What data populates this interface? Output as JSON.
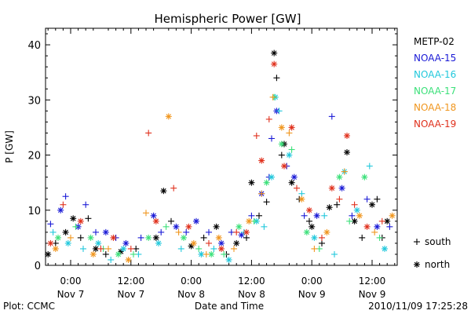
{
  "chart_data": {
    "type": "scatter",
    "title": "Hemispheric Power [GW]",
    "xlabel": "Date and Time",
    "ylabel": "P [GW]",
    "xlim": [
      -10,
      130
    ],
    "ylim": [
      0,
      43
    ],
    "yticks": [
      0,
      10,
      20,
      30,
      40
    ],
    "x_unit": "hours since 00:00 Nov 7",
    "xticks": [
      {
        "x": 0,
        "line1": "0:00",
        "line2": "Nov 7"
      },
      {
        "x": 24,
        "line1": "12:00",
        "line2": "Nov 7"
      },
      {
        "x": 48,
        "line1": "0:00",
        "line2": "Nov 8"
      },
      {
        "x": 72,
        "line1": "12:00",
        "line2": "Nov 8"
      },
      {
        "x": 96,
        "line1": "0:00",
        "line2": "Nov 9"
      },
      {
        "x": 120,
        "line1": "12:00",
        "line2": "Nov 9"
      }
    ],
    "grid": false,
    "legend_position": "right",
    "series": [
      {
        "name": "METP-02",
        "color": "#000000"
      },
      {
        "name": "NOAA-15",
        "color": "#1a1ad6"
      },
      {
        "name": "NOAA-16",
        "color": "#22c8dc"
      },
      {
        "name": "NOAA-17",
        "color": "#3ce07a"
      },
      {
        "name": "NOAA-18",
        "color": "#f0961e"
      },
      {
        "name": "NOAA-19",
        "color": "#e0301c"
      }
    ],
    "marker_legend": [
      {
        "symbol": "+",
        "label": "south"
      },
      {
        "symbol": "*",
        "label": "north"
      }
    ],
    "points": [
      {
        "s": 0,
        "x": -9,
        "y": 2,
        "m": "*"
      },
      {
        "s": 0,
        "x": -6,
        "y": 4,
        "m": "+"
      },
      {
        "s": 0,
        "x": -2,
        "y": 6,
        "m": "*"
      },
      {
        "s": 0,
        "x": 1,
        "y": 8.5,
        "m": "*"
      },
      {
        "s": 0,
        "x": 4,
        "y": 5,
        "m": "+"
      },
      {
        "s": 0,
        "x": 7,
        "y": 8.5,
        "m": "+"
      },
      {
        "s": 0,
        "x": 10,
        "y": 3,
        "m": "*"
      },
      {
        "s": 0,
        "x": 14,
        "y": 2,
        "m": "+"
      },
      {
        "s": 0,
        "x": 20,
        "y": 2.5,
        "m": "*"
      },
      {
        "s": 0,
        "x": 26,
        "y": 3,
        "m": "+"
      },
      {
        "s": 0,
        "x": 34,
        "y": 5,
        "m": "*"
      },
      {
        "s": 0,
        "x": 37,
        "y": 13.5,
        "m": "*"
      },
      {
        "s": 0,
        "x": 40,
        "y": 8,
        "m": "+"
      },
      {
        "s": 0,
        "x": 48,
        "y": 3.5,
        "m": "*"
      },
      {
        "s": 0,
        "x": 53,
        "y": 5,
        "m": "+"
      },
      {
        "s": 0,
        "x": 58,
        "y": 7,
        "m": "*"
      },
      {
        "s": 0,
        "x": 62,
        "y": 2,
        "m": "+"
      },
      {
        "s": 0,
        "x": 66,
        "y": 4,
        "m": "*"
      },
      {
        "s": 0,
        "x": 70,
        "y": 5,
        "m": "+"
      },
      {
        "s": 0,
        "x": 72,
        "y": 15,
        "m": "*"
      },
      {
        "s": 0,
        "x": 75,
        "y": 9,
        "m": "+"
      },
      {
        "s": 0,
        "x": 78,
        "y": 11.5,
        "m": "+"
      },
      {
        "s": 0,
        "x": 81,
        "y": 38.5,
        "m": "*"
      },
      {
        "s": 0,
        "x": 82,
        "y": 34,
        "m": "+"
      },
      {
        "s": 0,
        "x": 84,
        "y": 20,
        "m": "+"
      },
      {
        "s": 0,
        "x": 85,
        "y": 22,
        "m": "*"
      },
      {
        "s": 0,
        "x": 88,
        "y": 15,
        "m": "*"
      },
      {
        "s": 0,
        "x": 91,
        "y": 12,
        "m": "+"
      },
      {
        "s": 0,
        "x": 95,
        "y": 8,
        "m": "+"
      },
      {
        "s": 0,
        "x": 96,
        "y": 7,
        "m": "*"
      },
      {
        "s": 0,
        "x": 100,
        "y": 4,
        "m": "+"
      },
      {
        "s": 0,
        "x": 103,
        "y": 10.5,
        "m": "*"
      },
      {
        "s": 0,
        "x": 106,
        "y": 11,
        "m": "+"
      },
      {
        "s": 0,
        "x": 110,
        "y": 20.5,
        "m": "*"
      },
      {
        "s": 0,
        "x": 113,
        "y": 8,
        "m": "*"
      },
      {
        "s": 0,
        "x": 116,
        "y": 5,
        "m": "+"
      },
      {
        "s": 0,
        "x": 120,
        "y": 11,
        "m": "*"
      },
      {
        "s": 0,
        "x": 122,
        "y": 12,
        "m": "+"
      },
      {
        "s": 0,
        "x": 126,
        "y": 8,
        "m": "*"
      },
      {
        "s": 0,
        "x": 124,
        "y": 5,
        "m": "+"
      },
      {
        "s": 1,
        "x": -8,
        "y": 7.5,
        "m": "+"
      },
      {
        "s": 1,
        "x": -4,
        "y": 10,
        "m": "*"
      },
      {
        "s": 1,
        "x": -2,
        "y": 12.5,
        "m": "+"
      },
      {
        "s": 1,
        "x": 3,
        "y": 7,
        "m": "*"
      },
      {
        "s": 1,
        "x": 6,
        "y": 11,
        "m": "+"
      },
      {
        "s": 1,
        "x": 10,
        "y": 6,
        "m": "+"
      },
      {
        "s": 1,
        "x": 14,
        "y": 6,
        "m": "*"
      },
      {
        "s": 1,
        "x": 18,
        "y": 5,
        "m": "+"
      },
      {
        "s": 1,
        "x": 22,
        "y": 4,
        "m": "*"
      },
      {
        "s": 1,
        "x": 28,
        "y": 5,
        "m": "+"
      },
      {
        "s": 1,
        "x": 33,
        "y": 9,
        "m": "*"
      },
      {
        "s": 1,
        "x": 36,
        "y": 6,
        "m": "+"
      },
      {
        "s": 1,
        "x": 42,
        "y": 7,
        "m": "*"
      },
      {
        "s": 1,
        "x": 46,
        "y": 6,
        "m": "+"
      },
      {
        "s": 1,
        "x": 50,
        "y": 8,
        "m": "*"
      },
      {
        "s": 1,
        "x": 55,
        "y": 6,
        "m": "+"
      },
      {
        "s": 1,
        "x": 60,
        "y": 4,
        "m": "*"
      },
      {
        "s": 1,
        "x": 64,
        "y": 6,
        "m": "+"
      },
      {
        "s": 1,
        "x": 68,
        "y": 5.5,
        "m": "*"
      },
      {
        "s": 1,
        "x": 72,
        "y": 9,
        "m": "+"
      },
      {
        "s": 1,
        "x": 76,
        "y": 13,
        "m": "*"
      },
      {
        "s": 1,
        "x": 79,
        "y": 16,
        "m": "+"
      },
      {
        "s": 1,
        "x": 80,
        "y": 23,
        "m": "+"
      },
      {
        "s": 1,
        "x": 82,
        "y": 28,
        "m": "*"
      },
      {
        "s": 1,
        "x": 86,
        "y": 18,
        "m": "+"
      },
      {
        "s": 1,
        "x": 89,
        "y": 16,
        "m": "*"
      },
      {
        "s": 1,
        "x": 93,
        "y": 9,
        "m": "+"
      },
      {
        "s": 1,
        "x": 98,
        "y": 9,
        "m": "*"
      },
      {
        "s": 1,
        "x": 104,
        "y": 27,
        "m": "+"
      },
      {
        "s": 1,
        "x": 108,
        "y": 14,
        "m": "*"
      },
      {
        "s": 1,
        "x": 112,
        "y": 9,
        "m": "+"
      },
      {
        "s": 1,
        "x": 118,
        "y": 12,
        "m": "+"
      },
      {
        "s": 1,
        "x": 122,
        "y": 7,
        "m": "*"
      },
      {
        "s": 1,
        "x": 127,
        "y": 7,
        "m": "+"
      },
      {
        "s": 2,
        "x": -7,
        "y": 6,
        "m": "+"
      },
      {
        "s": 2,
        "x": -1,
        "y": 4,
        "m": "*"
      },
      {
        "s": 2,
        "x": 5,
        "y": 3,
        "m": "+"
      },
      {
        "s": 2,
        "x": 11,
        "y": 4,
        "m": "*"
      },
      {
        "s": 2,
        "x": 16,
        "y": 1,
        "m": "+"
      },
      {
        "s": 2,
        "x": 21,
        "y": 3,
        "m": "*"
      },
      {
        "s": 2,
        "x": 27,
        "y": 2,
        "m": "+"
      },
      {
        "s": 2,
        "x": 35,
        "y": 4,
        "m": "*"
      },
      {
        "s": 2,
        "x": 44,
        "y": 3,
        "m": "+"
      },
      {
        "s": 2,
        "x": 52,
        "y": 2,
        "m": "*"
      },
      {
        "s": 2,
        "x": 57,
        "y": 3,
        "m": "+"
      },
      {
        "s": 2,
        "x": 63,
        "y": 1,
        "m": "*"
      },
      {
        "s": 2,
        "x": 69,
        "y": 6,
        "m": "+"
      },
      {
        "s": 2,
        "x": 74,
        "y": 8,
        "m": "*"
      },
      {
        "s": 2,
        "x": 77,
        "y": 7,
        "m": "+"
      },
      {
        "s": 2,
        "x": 80,
        "y": 16,
        "m": "*"
      },
      {
        "s": 2,
        "x": 81.5,
        "y": 30.5,
        "m": "*"
      },
      {
        "s": 2,
        "x": 83,
        "y": 28,
        "m": "+"
      },
      {
        "s": 2,
        "x": 87,
        "y": 20,
        "m": "*"
      },
      {
        "s": 2,
        "x": 92,
        "y": 13,
        "m": "+"
      },
      {
        "s": 2,
        "x": 97,
        "y": 5,
        "m": "*"
      },
      {
        "s": 2,
        "x": 101,
        "y": 9,
        "m": "+"
      },
      {
        "s": 2,
        "x": 105,
        "y": 2,
        "m": "+"
      },
      {
        "s": 2,
        "x": 109,
        "y": 17,
        "m": "*"
      },
      {
        "s": 2,
        "x": 114,
        "y": 10,
        "m": "*"
      },
      {
        "s": 2,
        "x": 119,
        "y": 18,
        "m": "+"
      },
      {
        "s": 2,
        "x": 125,
        "y": 3,
        "m": "*"
      },
      {
        "s": 3,
        "x": -5,
        "y": 5,
        "m": "*"
      },
      {
        "s": 3,
        "x": 2,
        "y": 7,
        "m": "+"
      },
      {
        "s": 3,
        "x": 8,
        "y": 5,
        "m": "*"
      },
      {
        "s": 3,
        "x": 13,
        "y": 3,
        "m": "+"
      },
      {
        "s": 3,
        "x": 19,
        "y": 2,
        "m": "*"
      },
      {
        "s": 3,
        "x": 25,
        "y": 2,
        "m": "+"
      },
      {
        "s": 3,
        "x": 31,
        "y": 5,
        "m": "*"
      },
      {
        "s": 3,
        "x": 38,
        "y": 7,
        "m": "+"
      },
      {
        "s": 3,
        "x": 45,
        "y": 5,
        "m": "*"
      },
      {
        "s": 3,
        "x": 51,
        "y": 3,
        "m": "+"
      },
      {
        "s": 3,
        "x": 56,
        "y": 2,
        "m": "*"
      },
      {
        "s": 3,
        "x": 61,
        "y": 2,
        "m": "+"
      },
      {
        "s": 3,
        "x": 67,
        "y": 7,
        "m": "*"
      },
      {
        "s": 3,
        "x": 73,
        "y": 8,
        "m": "+"
      },
      {
        "s": 3,
        "x": 78,
        "y": 15,
        "m": "*"
      },
      {
        "s": 3,
        "x": 81,
        "y": 30.5,
        "m": "+"
      },
      {
        "s": 3,
        "x": 84,
        "y": 22,
        "m": "*"
      },
      {
        "s": 3,
        "x": 88,
        "y": 21,
        "m": "+"
      },
      {
        "s": 3,
        "x": 94,
        "y": 6,
        "m": "*"
      },
      {
        "s": 3,
        "x": 99,
        "y": 3,
        "m": "+"
      },
      {
        "s": 3,
        "x": 107,
        "y": 16,
        "m": "*"
      },
      {
        "s": 3,
        "x": 111,
        "y": 8,
        "m": "+"
      },
      {
        "s": 3,
        "x": 117,
        "y": 16,
        "m": "*"
      },
      {
        "s": 3,
        "x": 123,
        "y": 5,
        "m": "+"
      },
      {
        "s": 4,
        "x": -6,
        "y": 3,
        "m": "*"
      },
      {
        "s": 4,
        "x": 0,
        "y": 5,
        "m": "+"
      },
      {
        "s": 4,
        "x": 9,
        "y": 2,
        "m": "*"
      },
      {
        "s": 4,
        "x": 15,
        "y": 3,
        "m": "+"
      },
      {
        "s": 4,
        "x": 23,
        "y": 1,
        "m": "*"
      },
      {
        "s": 4,
        "x": 30,
        "y": 9.5,
        "m": "+"
      },
      {
        "s": 4,
        "x": 39,
        "y": 27,
        "m": "*"
      },
      {
        "s": 4,
        "x": 43,
        "y": 6,
        "m": "+"
      },
      {
        "s": 4,
        "x": 49,
        "y": 4,
        "m": "*"
      },
      {
        "s": 4,
        "x": 54,
        "y": 2,
        "m": "+"
      },
      {
        "s": 4,
        "x": 59,
        "y": 5,
        "m": "*"
      },
      {
        "s": 4,
        "x": 65,
        "y": 3,
        "m": "+"
      },
      {
        "s": 4,
        "x": 71,
        "y": 8,
        "m": "*"
      },
      {
        "s": 4,
        "x": 76,
        "y": 13,
        "m": "+"
      },
      {
        "s": 4,
        "x": 80.5,
        "y": 30.5,
        "m": "+"
      },
      {
        "s": 4,
        "x": 84,
        "y": 25,
        "m": "*"
      },
      {
        "s": 4,
        "x": 87,
        "y": 24,
        "m": "+"
      },
      {
        "s": 4,
        "x": 92,
        "y": 12,
        "m": "*"
      },
      {
        "s": 4,
        "x": 97,
        "y": 3,
        "m": "+"
      },
      {
        "s": 4,
        "x": 102,
        "y": 6,
        "m": "*"
      },
      {
        "s": 4,
        "x": 109,
        "y": 17,
        "m": "+"
      },
      {
        "s": 4,
        "x": 115,
        "y": 9,
        "m": "*"
      },
      {
        "s": 4,
        "x": 121,
        "y": 6,
        "m": "+"
      },
      {
        "s": 4,
        "x": 128,
        "y": 9,
        "m": "*"
      },
      {
        "s": 5,
        "x": -8,
        "y": 4,
        "m": "*"
      },
      {
        "s": 5,
        "x": -3,
        "y": 11,
        "m": "+"
      },
      {
        "s": 5,
        "x": 4,
        "y": 8,
        "m": "*"
      },
      {
        "s": 5,
        "x": 12,
        "y": 3,
        "m": "+"
      },
      {
        "s": 5,
        "x": 17,
        "y": 5,
        "m": "*"
      },
      {
        "s": 5,
        "x": 24,
        "y": 3,
        "m": "+"
      },
      {
        "s": 5,
        "x": 31,
        "y": 24,
        "m": "+"
      },
      {
        "s": 5,
        "x": 34,
        "y": 8,
        "m": "*"
      },
      {
        "s": 5,
        "x": 41,
        "y": 14,
        "m": "+"
      },
      {
        "s": 5,
        "x": 47,
        "y": 7,
        "m": "*"
      },
      {
        "s": 5,
        "x": 55,
        "y": 4,
        "m": "+"
      },
      {
        "s": 5,
        "x": 60,
        "y": 3,
        "m": "*"
      },
      {
        "s": 5,
        "x": 66,
        "y": 6,
        "m": "+"
      },
      {
        "s": 5,
        "x": 70,
        "y": 6,
        "m": "*"
      },
      {
        "s": 5,
        "x": 74,
        "y": 23.5,
        "m": "+"
      },
      {
        "s": 5,
        "x": 76,
        "y": 19,
        "m": "*"
      },
      {
        "s": 5,
        "x": 79,
        "y": 26.5,
        "m": "+"
      },
      {
        "s": 5,
        "x": 81,
        "y": 36.5,
        "m": "*"
      },
      {
        "s": 5,
        "x": 85,
        "y": 18,
        "m": "*"
      },
      {
        "s": 5,
        "x": 88,
        "y": 25,
        "m": "*"
      },
      {
        "s": 5,
        "x": 90,
        "y": 14,
        "m": "+"
      },
      {
        "s": 5,
        "x": 95,
        "y": 10,
        "m": "*"
      },
      {
        "s": 5,
        "x": 100,
        "y": 5,
        "m": "+"
      },
      {
        "s": 5,
        "x": 104,
        "y": 14,
        "m": "*"
      },
      {
        "s": 5,
        "x": 107,
        "y": 12,
        "m": "+"
      },
      {
        "s": 5,
        "x": 110,
        "y": 23.5,
        "m": "*"
      },
      {
        "s": 5,
        "x": 113,
        "y": 11,
        "m": "+"
      },
      {
        "s": 5,
        "x": 118,
        "y": 7,
        "m": "*"
      },
      {
        "s": 5,
        "x": 124,
        "y": 8,
        "m": "+"
      }
    ]
  },
  "footer": {
    "left": "Plot: CCMC",
    "right": "2010/11/09 17:25:28"
  }
}
